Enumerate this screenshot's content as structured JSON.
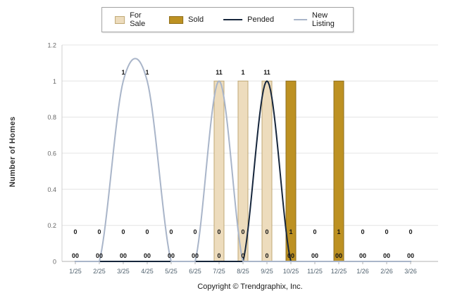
{
  "legend": {
    "items": [
      {
        "label": "For Sale",
        "type": "bar",
        "color": "#eddcbd",
        "border": "#c0a975"
      },
      {
        "label": "Sold",
        "type": "bar",
        "color": "#bd9122",
        "border": "#8f6f1d"
      },
      {
        "label": "Pended",
        "type": "line",
        "color": "#16263c"
      },
      {
        "label": "New Listing",
        "type": "line",
        "color": "#a9b5c9"
      }
    ]
  },
  "y_axis": {
    "title": "Number of Homes",
    "tick_labels": [
      "0",
      "0.2",
      "0.4",
      "0.6",
      "0.8",
      "1",
      "1.2"
    ]
  },
  "footer": {
    "text": "Copyright © Trendgraphix, Inc."
  },
  "chart_data": {
    "type": "combo",
    "categories": [
      "1/25",
      "2/25",
      "3/25",
      "4/25",
      "5/25",
      "6/25",
      "7/25",
      "8/25",
      "9/25",
      "10/25",
      "11/25",
      "12/25",
      "1/26",
      "2/26",
      "3/26"
    ],
    "series": [
      {
        "name": "For Sale",
        "type": "bar",
        "color": "#eddcbd",
        "border": "#c0a975",
        "values": [
          0,
          0,
          0,
          0,
          0,
          0,
          1,
          1,
          1,
          0,
          0,
          0,
          0,
          0,
          0
        ]
      },
      {
        "name": "Sold",
        "type": "bar",
        "color": "#bd9122",
        "border": "#8f6f1d",
        "values": [
          0,
          0,
          0,
          0,
          0,
          0,
          0,
          0,
          0,
          1,
          0,
          1,
          0,
          0,
          0
        ]
      },
      {
        "name": "Pended",
        "type": "line",
        "color": "#16263c",
        "values": [
          0,
          0,
          0,
          0,
          0,
          0,
          0,
          0,
          1,
          0,
          0,
          0,
          0,
          0,
          0
        ]
      },
      {
        "name": "New Listing",
        "type": "line",
        "color": "#a9b5c9",
        "values": [
          0,
          0,
          1,
          1,
          0,
          0,
          1,
          0,
          0,
          0,
          0,
          0,
          0,
          0,
          0
        ]
      }
    ],
    "ylim": [
      0,
      1.2
    ],
    "yticks": [
      0,
      0.2,
      0.4,
      0.6,
      0.8,
      1,
      1.2
    ],
    "grid": true,
    "legend_position": "top",
    "smoothing": "spline",
    "title": "",
    "xlabel": "",
    "ylabel": "Number of Homes",
    "data_label_rows": {
      "top": [
        "",
        "",
        "1",
        "1",
        "",
        "",
        "11",
        "1",
        "11",
        "",
        "",
        "",
        "",
        "",
        ""
      ],
      "mid": [
        "0",
        "0",
        "0",
        "0",
        "0",
        "0",
        "0",
        "0",
        "0",
        "1",
        "0",
        "1",
        "0",
        "0",
        "0"
      ],
      "bottom": [
        "00",
        "00",
        "00",
        "00",
        "00",
        "00",
        "0",
        "0",
        "0",
        "00",
        "00",
        "00",
        "00",
        "00",
        "00"
      ]
    }
  }
}
